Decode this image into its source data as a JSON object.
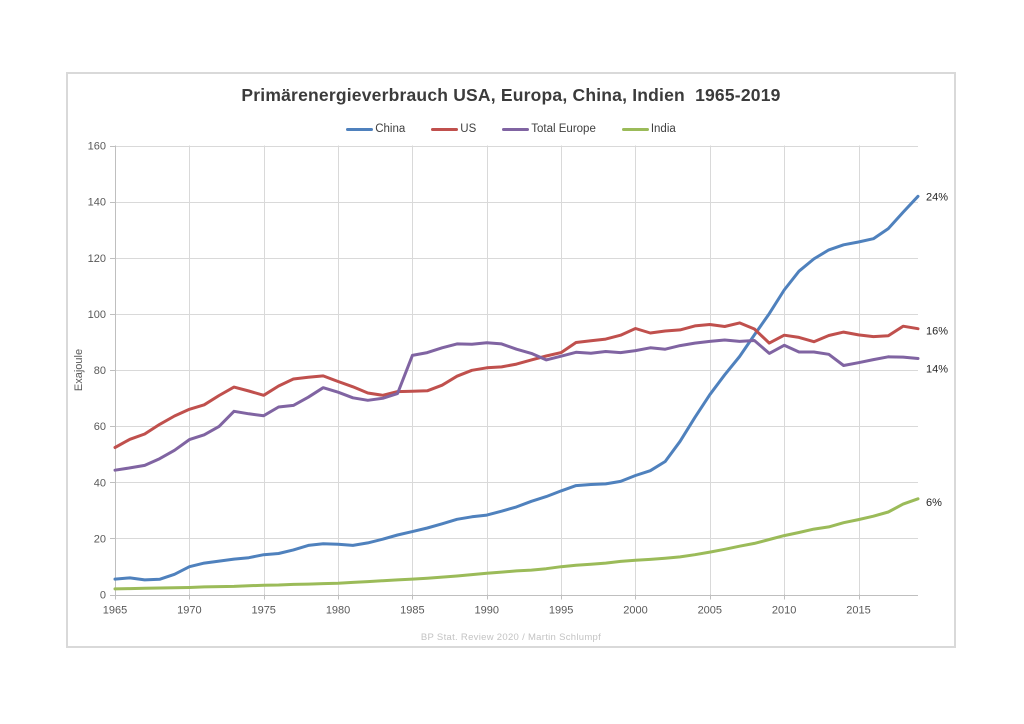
{
  "chart_data": {
    "type": "line",
    "title": "Primärenergieverbrauch USA, Europa, China, Indien  1965-2019",
    "source_note": "BP Stat. Review 2020 / Martin Schlumpf",
    "xlabel": "",
    "ylabel": "Exajoule",
    "ylim": [
      0,
      160
    ],
    "y_ticks": [
      0,
      20,
      40,
      60,
      80,
      100,
      120,
      140,
      160
    ],
    "x_ticks": [
      1965,
      1970,
      1975,
      1980,
      1985,
      1990,
      1995,
      2000,
      2005,
      2010,
      2015
    ],
    "x_range": [
      1965,
      2019
    ],
    "grid": true,
    "legend_position": "top",
    "years": [
      1965,
      1966,
      1967,
      1968,
      1969,
      1970,
      1971,
      1972,
      1973,
      1974,
      1975,
      1976,
      1977,
      1978,
      1979,
      1980,
      1981,
      1982,
      1983,
      1984,
      1985,
      1986,
      1987,
      1988,
      1989,
      1990,
      1991,
      1992,
      1993,
      1994,
      1995,
      1996,
      1997,
      1998,
      1999,
      2000,
      2001,
      2002,
      2003,
      2004,
      2005,
      2006,
      2007,
      2008,
      2009,
      2010,
      2011,
      2012,
      2013,
      2014,
      2015,
      2016,
      2017,
      2018,
      2019
    ],
    "series": [
      {
        "name": "China",
        "color": "#4F81BD",
        "end_label": "24%",
        "values": [
          5.5,
          5.9,
          5.2,
          5.4,
          7.2,
          9.9,
          11.2,
          11.9,
          12.6,
          13.1,
          14.2,
          14.6,
          15.9,
          17.5,
          18.1,
          17.9,
          17.5,
          18.4,
          19.7,
          21.2,
          22.4,
          23.7,
          25.2,
          26.8,
          27.7,
          28.3,
          29.7,
          31.2,
          33.2,
          34.9,
          36.9,
          38.8,
          39.2,
          39.4,
          40.3,
          42.4,
          44.1,
          47.4,
          54.6,
          63.1,
          71.2,
          78.3,
          84.8,
          92.5,
          100.1,
          108.5,
          115.2,
          119.6,
          122.8,
          124.6,
          125.6,
          126.8,
          130.4,
          136.2,
          141.9
        ]
      },
      {
        "name": "US",
        "color": "#C0504D",
        "end_label": "16%",
        "values": [
          52.4,
          55.3,
          57.2,
          60.6,
          63.6,
          66.0,
          67.6,
          70.9,
          73.9,
          72.5,
          71.0,
          74.3,
          76.8,
          77.4,
          77.9,
          75.9,
          74.0,
          71.8,
          71.0,
          72.3,
          72.4,
          72.6,
          74.6,
          77.8,
          79.9,
          80.8,
          81.1,
          82.1,
          83.6,
          85.0,
          86.2,
          89.8,
          90.4,
          91.0,
          92.4,
          94.8,
          93.2,
          93.9,
          94.3,
          95.7,
          96.2,
          95.5,
          96.8,
          94.6,
          89.6,
          92.4,
          91.6,
          90.1,
          92.3,
          93.5,
          92.5,
          91.9,
          92.2,
          95.6,
          94.7
        ]
      },
      {
        "name": "Total Europe",
        "color": "#8064A2",
        "end_label": "14%",
        "values": [
          44.3,
          45.1,
          46.0,
          48.4,
          51.4,
          55.2,
          56.9,
          59.9,
          65.3,
          64.4,
          63.7,
          66.8,
          67.4,
          70.3,
          73.7,
          72.1,
          70.1,
          69.2,
          69.9,
          71.6,
          85.2,
          86.2,
          87.9,
          89.3,
          89.2,
          89.7,
          89.3,
          87.4,
          85.9,
          83.6,
          84.9,
          86.3,
          86.0,
          86.6,
          86.2,
          86.9,
          87.9,
          87.4,
          88.7,
          89.6,
          90.2,
          90.7,
          90.2,
          90.5,
          85.9,
          88.8,
          86.4,
          86.4,
          85.6,
          81.6,
          82.6,
          83.7,
          84.7,
          84.6,
          84.1
        ]
      },
      {
        "name": "India",
        "color": "#9BBB59",
        "end_label": "6%",
        "values": [
          2.0,
          2.1,
          2.2,
          2.3,
          2.4,
          2.5,
          2.7,
          2.8,
          2.9,
          3.1,
          3.3,
          3.4,
          3.6,
          3.7,
          3.9,
          4.0,
          4.3,
          4.6,
          4.9,
          5.2,
          5.5,
          5.8,
          6.2,
          6.6,
          7.1,
          7.6,
          8.0,
          8.4,
          8.7,
          9.2,
          9.9,
          10.4,
          10.8,
          11.2,
          11.8,
          12.2,
          12.5,
          12.9,
          13.4,
          14.2,
          15.1,
          16.1,
          17.2,
          18.2,
          19.6,
          21.0,
          22.1,
          23.3,
          24.1,
          25.6,
          26.7,
          27.9,
          29.4,
          32.2,
          34.1
        ]
      }
    ],
    "style": {
      "grid_color": "#D9D9D9",
      "axis_color": "#BFBFBF",
      "tick_label_color": "#595959",
      "end_label_color": "#262626",
      "title_color": "#3b3b3b"
    }
  }
}
